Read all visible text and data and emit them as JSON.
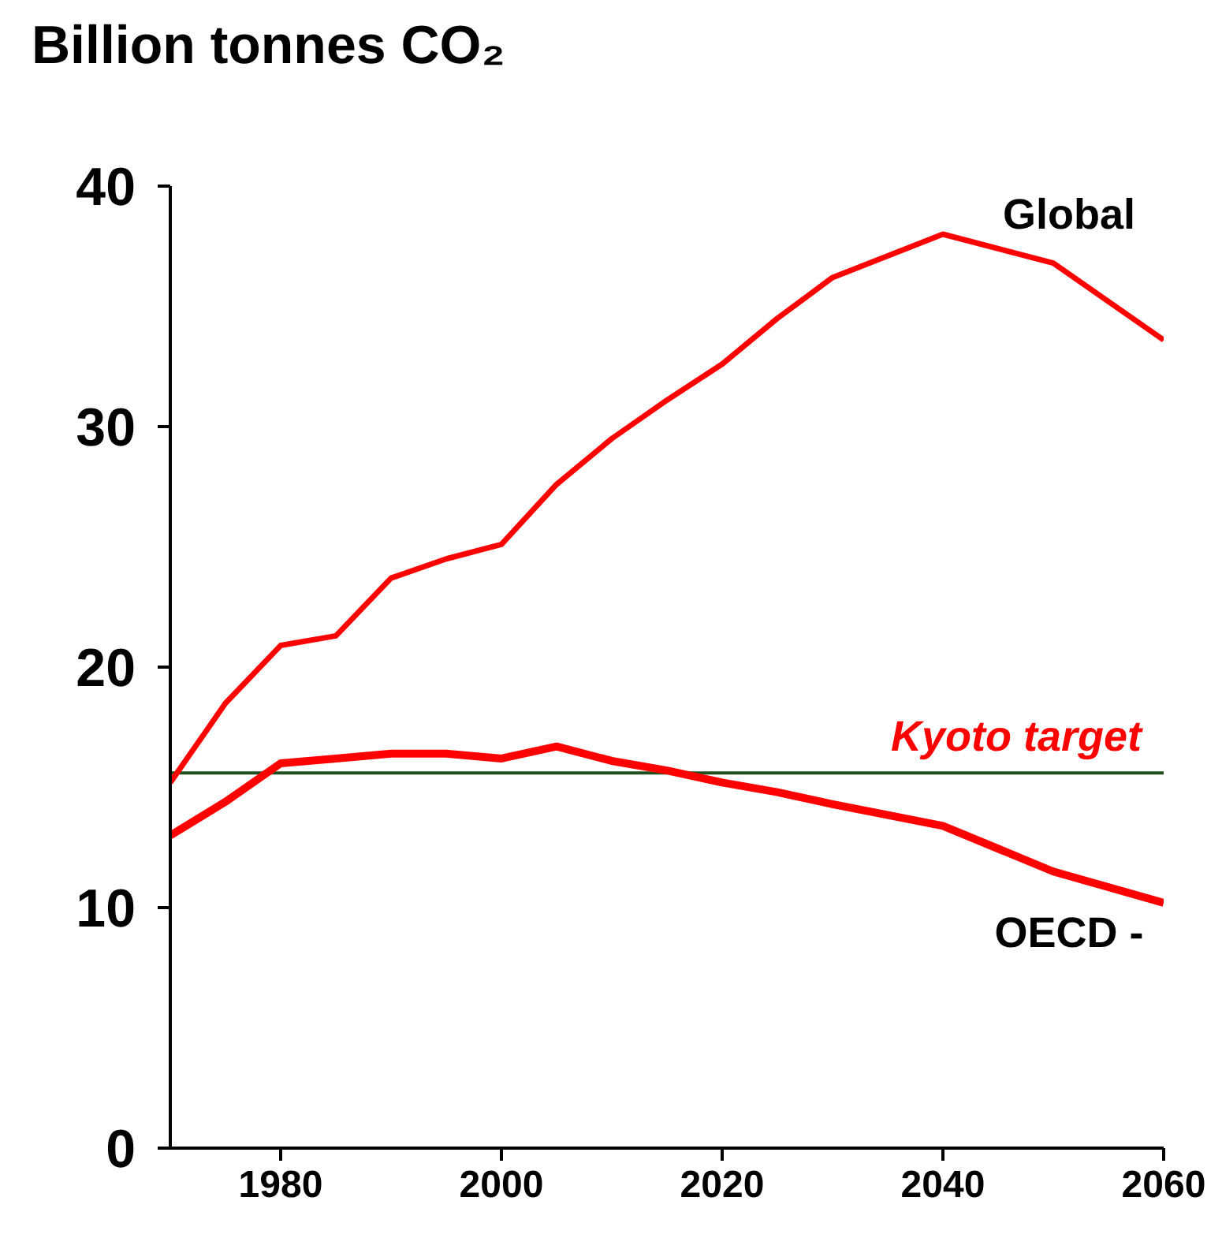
{
  "chart_data": {
    "type": "line",
    "ylabel": "Billion tonnes CO₂",
    "x": [
      1970,
      1975,
      1980,
      1985,
      1990,
      1995,
      2000,
      2005,
      2010,
      2015,
      2020,
      2025,
      2030,
      2040,
      2050,
      2060
    ],
    "series": [
      {
        "name": "Global",
        "color": "#ff0000",
        "values": [
          15.2,
          18.5,
          20.9,
          21.3,
          23.7,
          24.5,
          25.1,
          27.6,
          29.5,
          31.1,
          32.6,
          34.5,
          36.2,
          38.0,
          36.8,
          33.6
        ]
      },
      {
        "name": "OECD -",
        "color": "#ff0000",
        "values": [
          13.0,
          14.4,
          16.0,
          16.2,
          16.4,
          16.4,
          16.2,
          16.7,
          16.1,
          15.7,
          15.2,
          14.8,
          14.3,
          13.4,
          11.5,
          10.2
        ]
      }
    ],
    "xlim": [
      1970,
      2060
    ],
    "xticks": [
      1980,
      2000,
      2020,
      2040,
      2060
    ],
    "ylim": [
      0,
      40
    ],
    "yticks": [
      0,
      10,
      20,
      30,
      40
    ],
    "ref_lines": [
      {
        "axis": "y",
        "value": 15.6,
        "label": "Kyoto target",
        "color": "#1f4f1f"
      }
    ],
    "grid": false,
    "legend": false,
    "marker": "none",
    "line_style": "solid"
  }
}
